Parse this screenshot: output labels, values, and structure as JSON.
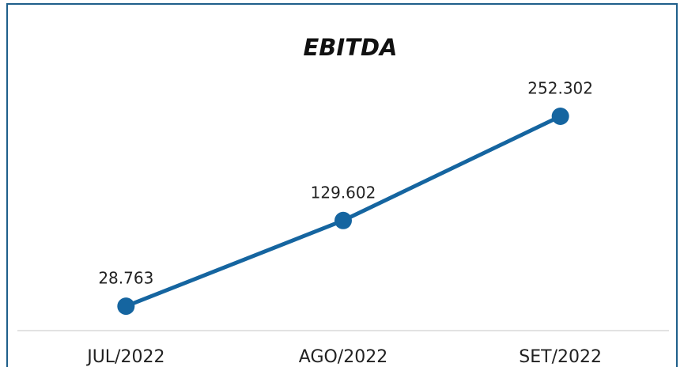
{
  "chart_data": {
    "type": "line",
    "title": "EBITDA",
    "categories": [
      "JUL/2022",
      "AGO/2022",
      "SET/2022"
    ],
    "series": [
      {
        "name": "EBITDA",
        "color": "#1565a0",
        "values": [
          28763,
          129602,
          252302
        ],
        "value_labels": [
          "28.763",
          "129.602",
          "252.302"
        ]
      }
    ]
  }
}
